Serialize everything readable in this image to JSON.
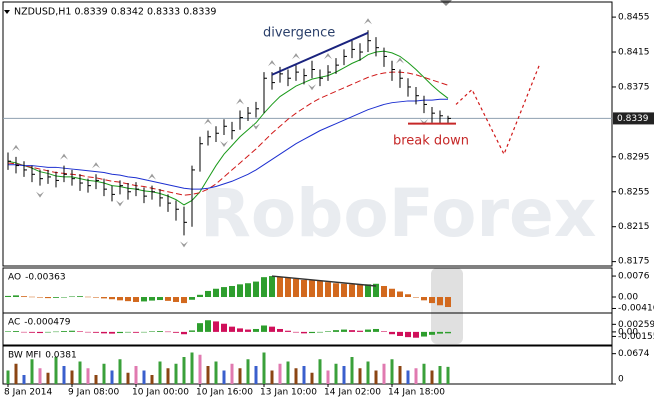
{
  "chart_data": [
    {
      "type": "ohlc",
      "title": "NZDUSD,H1  0.8339 0.8342 0.8333 0.8339",
      "watermark": "RoboForex",
      "categories": [
        "8 Jan 2014",
        null,
        null,
        null,
        null,
        null,
        null,
        null,
        "9 Jan 08:00",
        null,
        null,
        null,
        null,
        null,
        null,
        null,
        "10 Jan 00:00",
        null,
        null,
        null,
        null,
        null,
        null,
        null,
        "10 Jan 16:00",
        null,
        null,
        null,
        null,
        null,
        null,
        null,
        "13 Jan 10:00",
        null,
        null,
        null,
        null,
        null,
        null,
        null,
        "14 Jan 02:00",
        null,
        null,
        null,
        null,
        null,
        null,
        null,
        "14 Jan 18:00",
        null,
        null,
        null,
        null,
        null,
        null,
        null
      ],
      "high": [
        0.83,
        0.8295,
        0.829,
        0.8285,
        0.828,
        0.828,
        0.8278,
        0.8285,
        0.828,
        0.8275,
        0.827,
        0.8275,
        0.827,
        0.8262,
        0.8268,
        0.8265,
        0.8266,
        0.826,
        0.8262,
        0.8258,
        0.8252,
        0.8245,
        0.8238,
        0.8285,
        0.8318,
        0.8325,
        0.833,
        0.8338,
        0.8335,
        0.8348,
        0.8352,
        0.8358,
        0.8392,
        0.8392,
        0.8398,
        0.8395,
        0.84,
        0.8396,
        0.8405,
        0.8395,
        0.84,
        0.8408,
        0.8418,
        0.8428,
        0.8425,
        0.844,
        0.8432,
        0.842,
        0.8405,
        0.8395,
        0.8385,
        0.8375,
        0.8365,
        0.8352,
        0.8348,
        0.8342
      ],
      "low": [
        0.828,
        0.8276,
        0.8272,
        0.8266,
        0.8262,
        0.8264,
        0.826,
        0.8266,
        0.8262,
        0.8256,
        0.8254,
        0.8258,
        0.825,
        0.8244,
        0.8252,
        0.8246,
        0.825,
        0.8242,
        0.8246,
        0.8238,
        0.8232,
        0.8222,
        0.8205,
        0.8215,
        0.8278,
        0.8308,
        0.8312,
        0.832,
        0.8315,
        0.8326,
        0.8336,
        0.834,
        0.8345,
        0.8372,
        0.838,
        0.8376,
        0.8382,
        0.8378,
        0.8385,
        0.8376,
        0.8382,
        0.839,
        0.84,
        0.8408,
        0.8405,
        0.8415,
        0.841,
        0.8398,
        0.8382,
        0.8374,
        0.8364,
        0.8355,
        0.8345,
        0.8334,
        0.8333,
        0.8333
      ],
      "close": [
        0.829,
        0.8285,
        0.828,
        0.8275,
        0.827,
        0.8272,
        0.8268,
        0.8275,
        0.827,
        0.8265,
        0.8262,
        0.8268,
        0.8258,
        0.8252,
        0.8262,
        0.8255,
        0.8258,
        0.825,
        0.8255,
        0.8248,
        0.8242,
        0.8235,
        0.822,
        0.828,
        0.831,
        0.8318,
        0.8322,
        0.833,
        0.8325,
        0.834,
        0.8345,
        0.835,
        0.8385,
        0.838,
        0.839,
        0.8385,
        0.8392,
        0.8388,
        0.8395,
        0.8385,
        0.8392,
        0.84,
        0.841,
        0.8418,
        0.8415,
        0.8428,
        0.842,
        0.841,
        0.8395,
        0.8385,
        0.8375,
        0.8365,
        0.8355,
        0.8345,
        0.8342,
        0.8339
      ],
      "color": "#000000",
      "ma": [
        {
          "color": "#1a9a1a",
          "dash": false,
          "values": [
            0.829,
            0.8288,
            0.8285,
            0.8282,
            0.8278,
            0.8276,
            0.8273,
            0.8272,
            0.8272,
            0.827,
            0.8268,
            0.8267,
            0.8265,
            0.8262,
            0.8261,
            0.8259,
            0.8258,
            0.8256,
            0.8255,
            0.8253,
            0.825,
            0.8246,
            0.824,
            0.8245,
            0.8255,
            0.827,
            0.8285,
            0.8298,
            0.8308,
            0.8318,
            0.8326,
            0.8334,
            0.8345,
            0.8355,
            0.8364,
            0.837,
            0.8376,
            0.838,
            0.8384,
            0.8386,
            0.8388,
            0.8392,
            0.8397,
            0.8402,
            0.8406,
            0.8412,
            0.8415,
            0.8416,
            0.8414,
            0.841,
            0.8403,
            0.8395,
            0.8386,
            0.8377,
            0.8369,
            0.8362
          ]
        },
        {
          "color": "#d01818",
          "dash": true,
          "values": [
            0.8288,
            0.8287,
            0.8285,
            0.8283,
            0.8281,
            0.8279,
            0.8277,
            0.8276,
            0.8275,
            0.8274,
            0.8272,
            0.8271,
            0.8269,
            0.8267,
            0.8266,
            0.8264,
            0.8262,
            0.8261,
            0.8259,
            0.8257,
            0.8255,
            0.8253,
            0.8251,
            0.8252,
            0.8254,
            0.8258,
            0.8264,
            0.8272,
            0.828,
            0.8288,
            0.8296,
            0.8304,
            0.8313,
            0.8322,
            0.833,
            0.8338,
            0.8345,
            0.8351,
            0.8357,
            0.8362,
            0.8366,
            0.837,
            0.8374,
            0.8378,
            0.8382,
            0.8386,
            0.8389,
            0.8391,
            0.8392,
            0.8392,
            0.8391,
            0.8389,
            0.8386,
            0.8383,
            0.838,
            0.8377
          ]
        },
        {
          "color": "#1c2fd0",
          "dash": false,
          "values": [
            0.8286,
            0.8286,
            0.8285,
            0.8285,
            0.8284,
            0.8283,
            0.8283,
            0.8282,
            0.8281,
            0.828,
            0.8279,
            0.8278,
            0.8277,
            0.8275,
            0.8274,
            0.8272,
            0.8271,
            0.8269,
            0.8267,
            0.8265,
            0.8263,
            0.8261,
            0.8259,
            0.8258,
            0.8258,
            0.8259,
            0.8261,
            0.8264,
            0.8267,
            0.8271,
            0.8275,
            0.828,
            0.8286,
            0.8292,
            0.8298,
            0.8304,
            0.831,
            0.8315,
            0.832,
            0.8325,
            0.8329,
            0.8333,
            0.8337,
            0.8341,
            0.8345,
            0.8349,
            0.8352,
            0.8355,
            0.8357,
            0.8358,
            0.8359,
            0.8359,
            0.836,
            0.836,
            0.8361,
            0.8361
          ]
        }
      ],
      "fractals_up": [
        1,
        7,
        11,
        18,
        25,
        29,
        33,
        36,
        40,
        45,
        49
      ],
      "fractals_down": [
        4,
        14,
        22,
        27,
        31,
        38,
        52
      ],
      "fractal_color": "#9a9a9a",
      "lines": [
        {
          "x": [
            33,
            45
          ],
          "values": [
            0.8389,
            0.8437
          ],
          "color": "#1a237e"
        },
        {
          "x": [
            50,
            56
          ],
          "values": [
            0.8333,
            0.8333
          ],
          "color": "#c62828"
        }
      ],
      "annotations": [
        {
          "text": "divergence",
          "color": "#2a3f6a"
        },
        {
          "text": "break down",
          "color": "#c62828"
        }
      ],
      "forecast": {
        "x": [
          56,
          58,
          62,
          66.5
        ],
        "values": [
          0.8355,
          0.8372,
          0.8298,
          0.8402
        ],
        "color": "#d01818"
      },
      "price_line_color": "#8fa0b0",
      "ylim": [
        0.817,
        0.847
      ],
      "yticks": [
        0.8455,
        0.8415,
        0.8375,
        0.8295,
        0.8255,
        0.8215,
        0.8175
      ]
    },
    {
      "type": "ao",
      "title": "AO",
      "values": [
        0.0004,
        0.0006,
        0.0003,
        0.0001,
        -0.0002,
        -0.0004,
        -0.0003,
        -0.0001,
        0.0002,
        0.0003,
        0.0001,
        -0.0002,
        -0.0005,
        -0.0008,
        -0.0012,
        -0.0015,
        -0.0018,
        -0.0016,
        -0.0013,
        -0.0011,
        -0.0014,
        -0.0018,
        -0.0022,
        -0.001,
        0.0008,
        0.0022,
        0.003,
        0.0036,
        0.004,
        0.0046,
        0.005,
        0.0056,
        0.0072,
        0.0076,
        0.0074,
        0.007,
        0.0066,
        0.0062,
        0.006,
        0.0058,
        0.0054,
        0.005,
        0.0048,
        0.0046,
        0.0044,
        0.0046,
        0.0048,
        0.004,
        0.003,
        0.002,
        0.001,
        0.0,
        -0.0012,
        -0.0022,
        -0.003,
        -0.00363
      ],
      "up_color": "#2e9e2e",
      "down_color": "#d2691e",
      "lines": [
        {
          "x": [
            33,
            46
          ],
          "values": [
            0.0076,
            0.004
          ],
          "color": "#333333"
        }
      ],
      "ylim": [
        -0.0058,
        0.0098
      ],
      "yticks": [
        0.0076,
        {
          "value": 0,
          "label": "0.00"
        },
        -0.00416
      ]
    },
    {
      "type": "ac",
      "title": "AC",
      "values": [
        0.0002,
        0.0003,
        -0.0001,
        -0.0003,
        -0.0004,
        -0.0002,
        0.0001,
        0.0003,
        0.0004,
        0.0002,
        -0.0001,
        -0.0003,
        -0.0005,
        -0.0006,
        -0.0004,
        -0.0002,
        -0.0003,
        -0.0001,
        0.0002,
        0.0003,
        0.0001,
        -0.0003,
        -0.0008,
        0.0005,
        0.003,
        0.004,
        0.0036,
        0.0028,
        0.0018,
        0.0012,
        0.0008,
        0.001,
        0.0022,
        0.0018,
        0.001,
        0.0004,
        -0.0002,
        -0.0005,
        -0.0004,
        -0.0002,
        0.0002,
        0.0006,
        0.0008,
        0.0006,
        0.0004,
        0.0008,
        0.001,
        0.0002,
        -0.0008,
        -0.0014,
        -0.0018,
        -0.002,
        -0.0016,
        -0.001,
        -0.0006,
        -0.000479
      ],
      "up_color": "#2e9e2e",
      "down_color": "#d0105a",
      "ylim": [
        -0.0045,
        0.0058
      ],
      "yticks": [
        0.002595,
        {
          "value": 0,
          "label": "0.00"
        },
        -0.00155
      ]
    },
    {
      "type": "mfi",
      "title": "BW MFI",
      "values": [
        0.03,
        0.045,
        0.02,
        0.055,
        0.035,
        0.025,
        0.06,
        0.04,
        0.03,
        0.05,
        0.035,
        0.02,
        0.045,
        0.03,
        0.055,
        0.025,
        0.04,
        0.03,
        0.02,
        0.05,
        0.035,
        0.045,
        0.06,
        0.07,
        0.065,
        0.04,
        0.05,
        0.03,
        0.045,
        0.035,
        0.055,
        0.04,
        0.07,
        0.03,
        0.045,
        0.05,
        0.035,
        0.04,
        0.025,
        0.055,
        0.03,
        0.045,
        0.04,
        0.06,
        0.035,
        0.05,
        0.03,
        0.045,
        0.055,
        0.04,
        0.03,
        0.035,
        0.045,
        0.03,
        0.04,
        0.0381
      ],
      "colors": [
        "#3aa03a",
        "#8b4513",
        "#3a5fcd",
        "#3aa03a",
        "#e07ab0",
        "#8b4513",
        "#3aa03a",
        "#3a5fcd",
        "#8b4513",
        "#3aa03a",
        "#e07ab0",
        "#8b4513",
        "#3aa03a",
        "#3a5fcd",
        "#3aa03a",
        "#8b4513",
        "#e07ab0",
        "#3a5fcd",
        "#8b4513",
        "#3aa03a",
        "#8b4513",
        "#3aa03a",
        "#3aa03a",
        "#3aa03a",
        "#e07ab0",
        "#8b4513",
        "#3aa03a",
        "#3a5fcd",
        "#e07ab0",
        "#8b4513",
        "#3aa03a",
        "#3a5fcd",
        "#3aa03a",
        "#8b4513",
        "#e07ab0",
        "#3aa03a",
        "#8b4513",
        "#3a5fcd",
        "#8b4513",
        "#3aa03a",
        "#e07ab0",
        "#3aa03a",
        "#3a5fcd",
        "#3aa03a",
        "#8b4513",
        "#3aa03a",
        "#8b4513",
        "#e07ab0",
        "#3aa03a",
        "#8b4513",
        "#3a5fcd",
        "#e07ab0",
        "#3aa03a",
        "#8b4513",
        "#3aa03a",
        "#3aa03a"
      ],
      "ylim": [
        0,
        0.08
      ],
      "yticks": [
        0.0674,
        0
      ]
    }
  ]
}
